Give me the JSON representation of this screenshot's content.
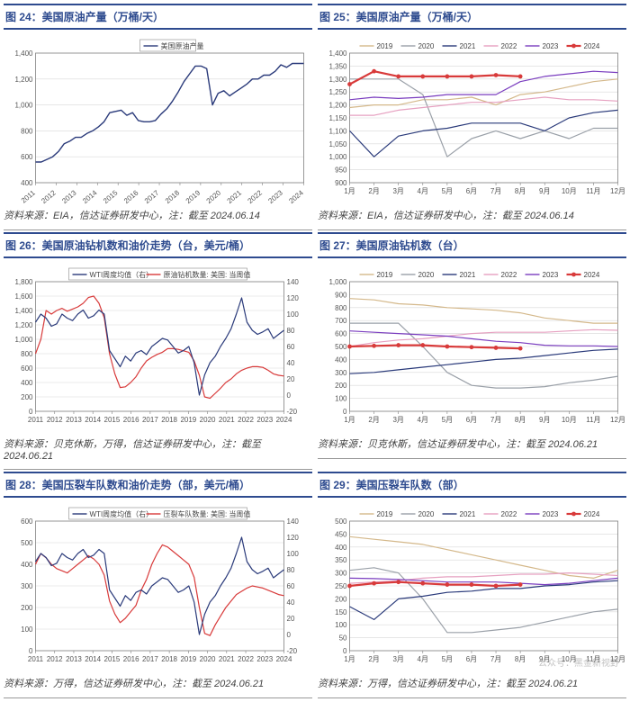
{
  "colors": {
    "title": "#2e4b8f",
    "grid": "#d8d8d8",
    "axis": "#808080",
    "navy": "#2a3a7a",
    "red": "#d83a3a",
    "dkred": "#b22222",
    "purple": "#7a3dbf",
    "pink": "#e6a0c0",
    "gray": "#9aa0a8",
    "ltbrown": "#d4b88a",
    "bg": "#ffffff"
  },
  "fig24": {
    "title": "图 24：美国原油产量（万桶/天）",
    "source": "资料来源：EIA，信达证券研发中心，注：截至 2024.06.14",
    "type": "line",
    "legend": [
      "美国原油产量"
    ],
    "legend_colors": [
      "#2a3a7a"
    ],
    "ylim": [
      400,
      1400
    ],
    "ytick_step": 200,
    "xticks": [
      "2011",
      "2012",
      "2013",
      "2014",
      "2015",
      "2016",
      "2017",
      "2018",
      "2019",
      "2020",
      "2021",
      "2022",
      "2023",
      "2024"
    ],
    "xticks_rotate": -40,
    "series": [
      {
        "y": [
          560,
          560,
          580,
          600,
          640,
          700,
          720,
          750,
          750,
          780,
          800,
          830,
          870,
          940,
          950,
          960,
          920,
          940,
          880,
          870,
          870,
          880,
          930,
          970,
          1030,
          1100,
          1180,
          1240,
          1300,
          1300,
          1280,
          1000,
          1090,
          1110,
          1070,
          1100,
          1130,
          1160,
          1200,
          1200,
          1230,
          1230,
          1260,
          1310,
          1290,
          1320,
          1320,
          1320
        ],
        "color": "#2a3a7a",
        "width": 1.4
      }
    ]
  },
  "fig25": {
    "title": "图 25：美国原油产量（万桶/天）",
    "source": "资料来源：EIA，信达证券研发中心，注：截至 2024.06.14",
    "type": "line",
    "legend": [
      "2019",
      "2020",
      "2021",
      "2022",
      "2023",
      "2024"
    ],
    "legend_colors": [
      "#d4b88a",
      "#9aa0a8",
      "#2a3a7a",
      "#e6a0c0",
      "#7a3dbf",
      "#d83a3a"
    ],
    "ylim": [
      900,
      1400
    ],
    "ytick_step": 50,
    "xticks": [
      "1月",
      "2月",
      "3月",
      "4月",
      "5月",
      "6月",
      "7月",
      "8月",
      "9月",
      "10月",
      "11月",
      "12月"
    ],
    "series": [
      {
        "y": [
          1190,
          1200,
          1200,
          1220,
          1220,
          1230,
          1200,
          1240,
          1250,
          1270,
          1290,
          1300
        ],
        "color": "#d4b88a",
        "width": 1.2
      },
      {
        "y": [
          1300,
          1300,
          1300,
          1240,
          1000,
          1070,
          1100,
          1070,
          1100,
          1070,
          1110,
          1110
        ],
        "color": "#9aa0a8",
        "width": 1.2
      },
      {
        "y": [
          1100,
          1000,
          1080,
          1100,
          1110,
          1130,
          1130,
          1130,
          1100,
          1150,
          1170,
          1180
        ],
        "color": "#2a3a7a",
        "width": 1.2
      },
      {
        "y": [
          1160,
          1160,
          1180,
          1190,
          1200,
          1210,
          1210,
          1220,
          1230,
          1220,
          1220,
          1215
        ],
        "color": "#e6a0c0",
        "width": 1.2
      },
      {
        "y": [
          1220,
          1230,
          1225,
          1230,
          1240,
          1240,
          1240,
          1290,
          1310,
          1320,
          1330,
          1325
        ],
        "color": "#7a3dbf",
        "width": 1.2
      },
      {
        "y": [
          1280,
          1330,
          1310,
          1310,
          1310,
          1310,
          1315,
          1310,
          null,
          null,
          null,
          null
        ],
        "color": "#d83a3a",
        "width": 2.2,
        "markers": true
      }
    ]
  },
  "fig26": {
    "title": "图 26：美国原油钻机数和油价走势（台，美元/桶）",
    "source": "资料来源：贝克休斯，万得，信达证券研发中心，注：截至 2024.06.21",
    "type": "dual",
    "legend": [
      "WTI周度均值（右）",
      "原油钻机数量: 美国: 当周值"
    ],
    "legend_colors": [
      "#2a3a7a",
      "#d83a3a"
    ],
    "ylim": [
      0,
      1800
    ],
    "ytick_step": 200,
    "ylim2": [
      -20,
      140
    ],
    "ytick_step2": 20,
    "xticks": [
      "2011",
      "2012",
      "2013",
      "2014",
      "2015",
      "2016",
      "2017",
      "2018",
      "2019",
      "2020",
      "2021",
      "2022",
      "2023",
      "2024"
    ],
    "series_left": [
      {
        "y": [
          800,
          1000,
          1400,
          1350,
          1400,
          1430,
          1390,
          1420,
          1450,
          1500,
          1580,
          1600,
          1500,
          1300,
          800,
          520,
          330,
          340,
          400,
          480,
          600,
          700,
          750,
          790,
          820,
          870,
          870,
          860,
          840,
          820,
          700,
          500,
          200,
          180,
          250,
          320,
          400,
          450,
          520,
          570,
          600,
          620,
          620,
          610,
          570,
          520,
          500,
          490
        ],
        "color": "#d83a3a",
        "width": 1.2
      }
    ],
    "series_right": [
      {
        "y": [
          90,
          100,
          95,
          85,
          88,
          100,
          95,
          92,
          100,
          105,
          95,
          98,
          105,
          100,
          55,
          45,
          35,
          48,
          42,
          52,
          55,
          50,
          60,
          65,
          70,
          68,
          60,
          52,
          55,
          60,
          40,
          0,
          25,
          40,
          48,
          60,
          70,
          82,
          100,
          120,
          90,
          80,
          75,
          78,
          82,
          70,
          75,
          80
        ],
        "color": "#2a3a7a",
        "width": 1.2
      }
    ]
  },
  "fig27": {
    "title": "图 27：美国原油钻机数（台）",
    "source": "资料来源：贝克休斯，信达证券研发中心，注：截至 2024.06.21",
    "type": "line",
    "legend": [
      "2019",
      "2020",
      "2021",
      "2022",
      "2023",
      "2024"
    ],
    "legend_colors": [
      "#d4b88a",
      "#9aa0a8",
      "#2a3a7a",
      "#e6a0c0",
      "#7a3dbf",
      "#d83a3a"
    ],
    "ylim": [
      0,
      1000
    ],
    "ytick_step": 100,
    "xticks": [
      "1月",
      "2月",
      "3月",
      "4月",
      "5月",
      "6月",
      "7月",
      "8月",
      "9月",
      "10月",
      "11月",
      "12月"
    ],
    "series": [
      {
        "y": [
          870,
          860,
          830,
          820,
          800,
          790,
          780,
          760,
          720,
          700,
          680,
          680
        ],
        "color": "#d4b88a",
        "width": 1.2
      },
      {
        "y": [
          680,
          680,
          680,
          500,
          300,
          200,
          180,
          180,
          190,
          220,
          240,
          270
        ],
        "color": "#9aa0a8",
        "width": 1.2
      },
      {
        "y": [
          290,
          300,
          320,
          340,
          360,
          380,
          400,
          410,
          430,
          450,
          470,
          480
        ],
        "color": "#2a3a7a",
        "width": 1.2
      },
      {
        "y": [
          500,
          530,
          550,
          560,
          580,
          600,
          610,
          610,
          610,
          620,
          630,
          625
        ],
        "color": "#e6a0c0",
        "width": 1.2
      },
      {
        "y": [
          620,
          610,
          600,
          590,
          580,
          560,
          540,
          530,
          510,
          505,
          505,
          500
        ],
        "color": "#7a3dbf",
        "width": 1.2
      },
      {
        "y": [
          500,
          505,
          510,
          510,
          500,
          495,
          490,
          485,
          null,
          null,
          null,
          null
        ],
        "color": "#d83a3a",
        "width": 2.2,
        "markers": true
      }
    ]
  },
  "fig28": {
    "title": "图 28：美国压裂车队数和油价走势（部，美元/桶）",
    "source": "资料来源：万得，信达证券研发中心，注：截至 2024.06.21",
    "type": "dual",
    "legend": [
      "WTI周度均值（右）",
      "压裂车队数量: 美国: 当周值"
    ],
    "legend_colors": [
      "#2a3a7a",
      "#d83a3a"
    ],
    "ylim": [
      0,
      600
    ],
    "ytick_step": 100,
    "ylim2": [
      -20,
      140
    ],
    "ytick_step2": 20,
    "xticks": [
      "2011",
      "2012",
      "2013",
      "2014",
      "2015",
      "2016",
      "2017",
      "2018",
      "2019",
      "2020",
      "2021",
      "2022",
      "2023",
      "2024"
    ],
    "series_left": [
      {
        "y": [
          400,
          450,
          430,
          400,
          380,
          370,
          360,
          380,
          400,
          420,
          440,
          425,
          400,
          350,
          230,
          170,
          130,
          150,
          180,
          210,
          280,
          330,
          400,
          450,
          490,
          480,
          460,
          440,
          420,
          400,
          340,
          200,
          80,
          70,
          120,
          160,
          200,
          230,
          260,
          275,
          290,
          300,
          295,
          290,
          280,
          270,
          260,
          255
        ],
        "color": "#d83a3a",
        "width": 1.2
      }
    ],
    "series_right": [
      {
        "y": [
          90,
          100,
          95,
          85,
          88,
          100,
          95,
          92,
          100,
          105,
          95,
          98,
          105,
          100,
          55,
          45,
          35,
          48,
          42,
          52,
          55,
          50,
          60,
          65,
          70,
          68,
          60,
          52,
          55,
          60,
          40,
          0,
          25,
          40,
          48,
          60,
          70,
          82,
          100,
          120,
          90,
          80,
          75,
          78,
          82,
          70,
          75,
          80
        ],
        "color": "#2a3a7a",
        "width": 1.2
      }
    ]
  },
  "fig29": {
    "title": "图 29：美国压裂车队数（部）",
    "source": "资料来源：万得，信达证券研发中心，注：截至 2024.06.21",
    "type": "line",
    "legend": [
      "2019",
      "2020",
      "2021",
      "2022",
      "2023",
      "2024"
    ],
    "legend_colors": [
      "#d4b88a",
      "#9aa0a8",
      "#2a3a7a",
      "#e6a0c0",
      "#7a3dbf",
      "#d83a3a"
    ],
    "ylim": [
      0,
      500
    ],
    "ytick_step": 50,
    "xticks": [
      "1月",
      "2月",
      "3月",
      "4月",
      "5月",
      "6月",
      "7月",
      "8月",
      "9月",
      "10月",
      "11月",
      "12月"
    ],
    "series": [
      {
        "y": [
          440,
          430,
          420,
          410,
          390,
          370,
          350,
          330,
          310,
          290,
          280,
          310
        ],
        "color": "#d4b88a",
        "width": 1.2
      },
      {
        "y": [
          310,
          320,
          300,
          200,
          70,
          70,
          80,
          90,
          110,
          130,
          150,
          160
        ],
        "color": "#9aa0a8",
        "width": 1.2
      },
      {
        "y": [
          170,
          120,
          200,
          210,
          225,
          230,
          240,
          240,
          250,
          255,
          265,
          270
        ],
        "color": "#2a3a7a",
        "width": 1.2
      },
      {
        "y": [
          260,
          265,
          270,
          280,
          285,
          285,
          290,
          295,
          295,
          300,
          295,
          290
        ],
        "color": "#e6a0c0",
        "width": 1.2
      },
      {
        "y": [
          280,
          278,
          275,
          270,
          265,
          265,
          265,
          260,
          255,
          260,
          270,
          280
        ],
        "color": "#7a3dbf",
        "width": 1.2
      },
      {
        "y": [
          250,
          260,
          265,
          260,
          255,
          255,
          250,
          255,
          null,
          null,
          null,
          null
        ],
        "color": "#d83a3a",
        "width": 2.2,
        "markers": true
      }
    ]
  },
  "watermark": "公众号：黑金新视野"
}
